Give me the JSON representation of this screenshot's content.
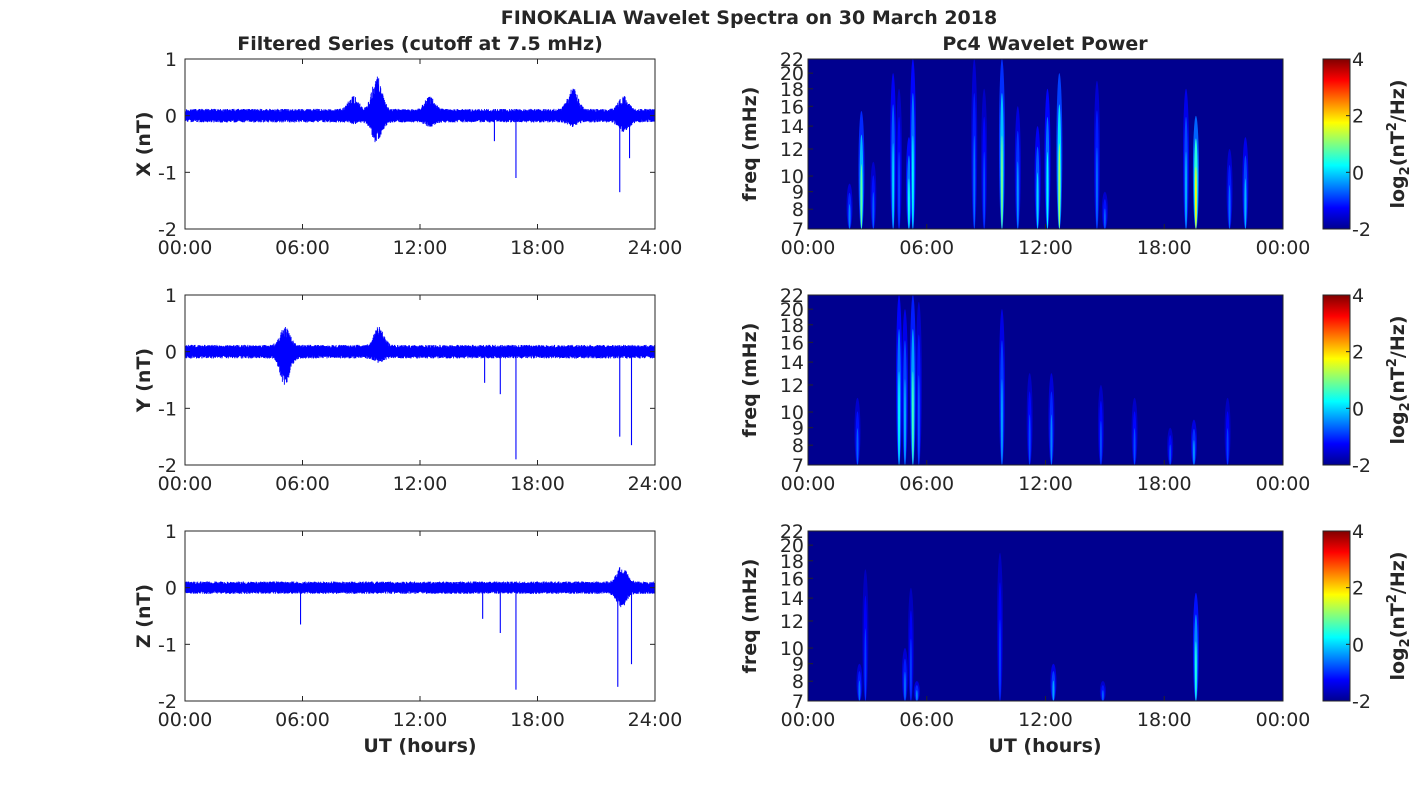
{
  "figure": {
    "title": "FINOKALIA Wavelet Spectra on 30 March 2018",
    "left_column_title": "Filtered Series (cutoff at 7.5 mHz)",
    "right_column_title": "Pc4 Wavelet Power",
    "xlabel": "UT (hours)",
    "colors": {
      "trace": "#0000ff",
      "spectrum_background": "#00008f",
      "axes": "#262626"
    }
  },
  "chart_data": [
    {
      "type": "line",
      "name": "X filtered series",
      "ylabel": "X (nT)",
      "x_ticks": [
        "00:00",
        "06:00",
        "12:00",
        "18:00",
        "24:00"
      ],
      "xlim": [
        0,
        24
      ],
      "y_ticks": [
        "1",
        "0",
        "-1",
        "-2"
      ],
      "ylim": [
        -2,
        1
      ],
      "noise_amplitude": 0.12,
      "bursts": [
        {
          "x": 8.6,
          "max": 0.35,
          "min": -0.15
        },
        {
          "x": 9.8,
          "max": 0.7,
          "min": -0.5
        },
        {
          "x": 12.5,
          "max": 0.35,
          "min": -0.2
        },
        {
          "x": 19.8,
          "max": 0.5,
          "min": -0.2
        },
        {
          "x": 22.4,
          "max": 0.35,
          "min": -0.3
        }
      ],
      "spikes": [
        {
          "x": 16.9,
          "min": -1.1
        },
        {
          "x": 22.2,
          "min": -1.35
        },
        {
          "x": 22.7,
          "min": -0.75
        },
        {
          "x": 15.8,
          "min": -0.45
        }
      ]
    },
    {
      "type": "line",
      "name": "Y filtered series",
      "ylabel": "Y (nT)",
      "x_ticks": [
        "00:00",
        "06:00",
        "12:00",
        "18:00",
        "24:00"
      ],
      "xlim": [
        0,
        24
      ],
      "y_ticks": [
        "1",
        "0",
        "-1",
        "-2"
      ],
      "ylim": [
        -2,
        1
      ],
      "noise_amplitude": 0.12,
      "bursts": [
        {
          "x": 5.1,
          "max": 0.45,
          "min": -0.6
        },
        {
          "x": 9.9,
          "max": 0.45,
          "min": -0.2
        }
      ],
      "spikes": [
        {
          "x": 16.9,
          "min": -1.9
        },
        {
          "x": 16.1,
          "min": -0.75
        },
        {
          "x": 22.2,
          "min": -1.5
        },
        {
          "x": 22.8,
          "min": -1.65
        },
        {
          "x": 15.3,
          "min": -0.55
        }
      ]
    },
    {
      "type": "line",
      "name": "Z filtered series",
      "ylabel": "Z (nT)",
      "x_ticks": [
        "00:00",
        "06:00",
        "12:00",
        "18:00",
        "24:00"
      ],
      "xlim": [
        0,
        24
      ],
      "y_ticks": [
        "1",
        "0",
        "-1",
        "-2"
      ],
      "ylim": [
        -2,
        1
      ],
      "noise_amplitude": 0.11,
      "bursts": [
        {
          "x": 22.3,
          "max": 0.4,
          "min": -0.35
        }
      ],
      "spikes": [
        {
          "x": 5.9,
          "min": -0.65
        },
        {
          "x": 15.2,
          "min": -0.55
        },
        {
          "x": 16.1,
          "min": -0.8
        },
        {
          "x": 16.9,
          "min": -1.8
        },
        {
          "x": 22.1,
          "min": -1.75
        },
        {
          "x": 22.8,
          "min": -1.35
        }
      ]
    },
    {
      "type": "heatmap",
      "name": "X wavelet power",
      "ylabel": "freq (mHz)",
      "colorbar_label": "log2(nT2/Hz)",
      "x_ticks": [
        "00:00",
        "06:00",
        "12:00",
        "18:00",
        "00:00"
      ],
      "xlim": [
        0,
        24
      ],
      "y_ticks": [
        "22",
        "20",
        "18",
        "16",
        "14",
        "12",
        "10",
        "9",
        "8",
        "7"
      ],
      "ylim": [
        7,
        22
      ],
      "colorbar_ticks": [
        "4",
        "2",
        "0",
        "-2"
      ],
      "clim": [
        -2,
        4
      ],
      "streaks": [
        {
          "t": 2.1,
          "ftop": 9.5,
          "peak": -0.5
        },
        {
          "t": 2.7,
          "ftop": 15.5,
          "peak": 0.8
        },
        {
          "t": 3.3,
          "ftop": 11,
          "peak": -0.7
        },
        {
          "t": 4.3,
          "ftop": 20,
          "peak": 0.0
        },
        {
          "t": 4.6,
          "ftop": 18,
          "peak": -0.8
        },
        {
          "t": 5.1,
          "ftop": 13,
          "peak": 0.3
        },
        {
          "t": 5.3,
          "ftop": 22,
          "peak": 0.2
        },
        {
          "t": 8.4,
          "ftop": 22,
          "peak": -0.6
        },
        {
          "t": 8.9,
          "ftop": 18,
          "peak": -0.8
        },
        {
          "t": 9.8,
          "ftop": 22,
          "peak": 0.9
        },
        {
          "t": 10.6,
          "ftop": 16,
          "peak": -0.4
        },
        {
          "t": 11.6,
          "ftop": 14,
          "peak": 0.0
        },
        {
          "t": 12.1,
          "ftop": 18,
          "peak": 0.2
        },
        {
          "t": 12.7,
          "ftop": 20,
          "peak": 1.2
        },
        {
          "t": 14.6,
          "ftop": 19,
          "peak": -0.6
        },
        {
          "t": 15.0,
          "ftop": 9,
          "peak": -0.7
        },
        {
          "t": 19.1,
          "ftop": 18,
          "peak": -0.2
        },
        {
          "t": 19.6,
          "ftop": 15,
          "peak": 1.8
        },
        {
          "t": 21.3,
          "ftop": 12,
          "peak": -0.6
        },
        {
          "t": 22.1,
          "ftop": 13,
          "peak": -0.2
        }
      ]
    },
    {
      "type": "heatmap",
      "name": "Y wavelet power",
      "ylabel": "freq (mHz)",
      "colorbar_label": "log2(nT2/Hz)",
      "x_ticks": [
        "00:00",
        "06:00",
        "12:00",
        "18:00",
        "00:00"
      ],
      "xlim": [
        0,
        24
      ],
      "y_ticks": [
        "22",
        "20",
        "18",
        "16",
        "14",
        "12",
        "10",
        "9",
        "8",
        "7"
      ],
      "ylim": [
        7,
        22
      ],
      "colorbar_ticks": [
        "4",
        "2",
        "0",
        "-2"
      ],
      "clim": [
        -2,
        4
      ],
      "streaks": [
        {
          "t": 2.5,
          "ftop": 11,
          "peak": -0.7
        },
        {
          "t": 4.6,
          "ftop": 22,
          "peak": 0.2
        },
        {
          "t": 4.9,
          "ftop": 20,
          "peak": -0.2
        },
        {
          "t": 5.3,
          "ftop": 22,
          "peak": 0.6
        },
        {
          "t": 5.6,
          "ftop": 21,
          "peak": -0.7
        },
        {
          "t": 9.8,
          "ftop": 20,
          "peak": -0.3
        },
        {
          "t": 11.2,
          "ftop": 13,
          "peak": -0.8
        },
        {
          "t": 12.3,
          "ftop": 13,
          "peak": -0.5
        },
        {
          "t": 14.8,
          "ftop": 12,
          "peak": -0.8
        },
        {
          "t": 16.5,
          "ftop": 11,
          "peak": -0.8
        },
        {
          "t": 18.3,
          "ftop": 9,
          "peak": -0.8
        },
        {
          "t": 19.5,
          "ftop": 9.5,
          "peak": -0.4
        },
        {
          "t": 21.2,
          "ftop": 11,
          "peak": -0.9
        }
      ]
    },
    {
      "type": "heatmap",
      "name": "Z wavelet power",
      "ylabel": "freq (mHz)",
      "colorbar_label": "log2(nT2/Hz)",
      "x_ticks": [
        "00:00",
        "06:00",
        "12:00",
        "18:00",
        "00:00"
      ],
      "xlim": [
        0,
        24
      ],
      "y_ticks": [
        "22",
        "20",
        "18",
        "16",
        "14",
        "12",
        "10",
        "9",
        "8",
        "7"
      ],
      "ylim": [
        7,
        22
      ],
      "colorbar_ticks": [
        "4",
        "2",
        "0",
        "-2"
      ],
      "clim": [
        -2,
        4
      ],
      "streaks": [
        {
          "t": 2.6,
          "ftop": 9,
          "peak": -0.6
        },
        {
          "t": 2.9,
          "ftop": 17,
          "peak": -0.9
        },
        {
          "t": 4.9,
          "ftop": 10,
          "peak": -0.6
        },
        {
          "t": 5.2,
          "ftop": 15,
          "peak": -0.9
        },
        {
          "t": 5.5,
          "ftop": 8,
          "peak": -0.5
        },
        {
          "t": 9.7,
          "ftop": 19,
          "peak": -0.9
        },
        {
          "t": 12.4,
          "ftop": 9,
          "peak": -0.3
        },
        {
          "t": 14.9,
          "ftop": 8,
          "peak": -0.7
        },
        {
          "t": 19.6,
          "ftop": 14.5,
          "peak": 0.4
        }
      ]
    }
  ]
}
